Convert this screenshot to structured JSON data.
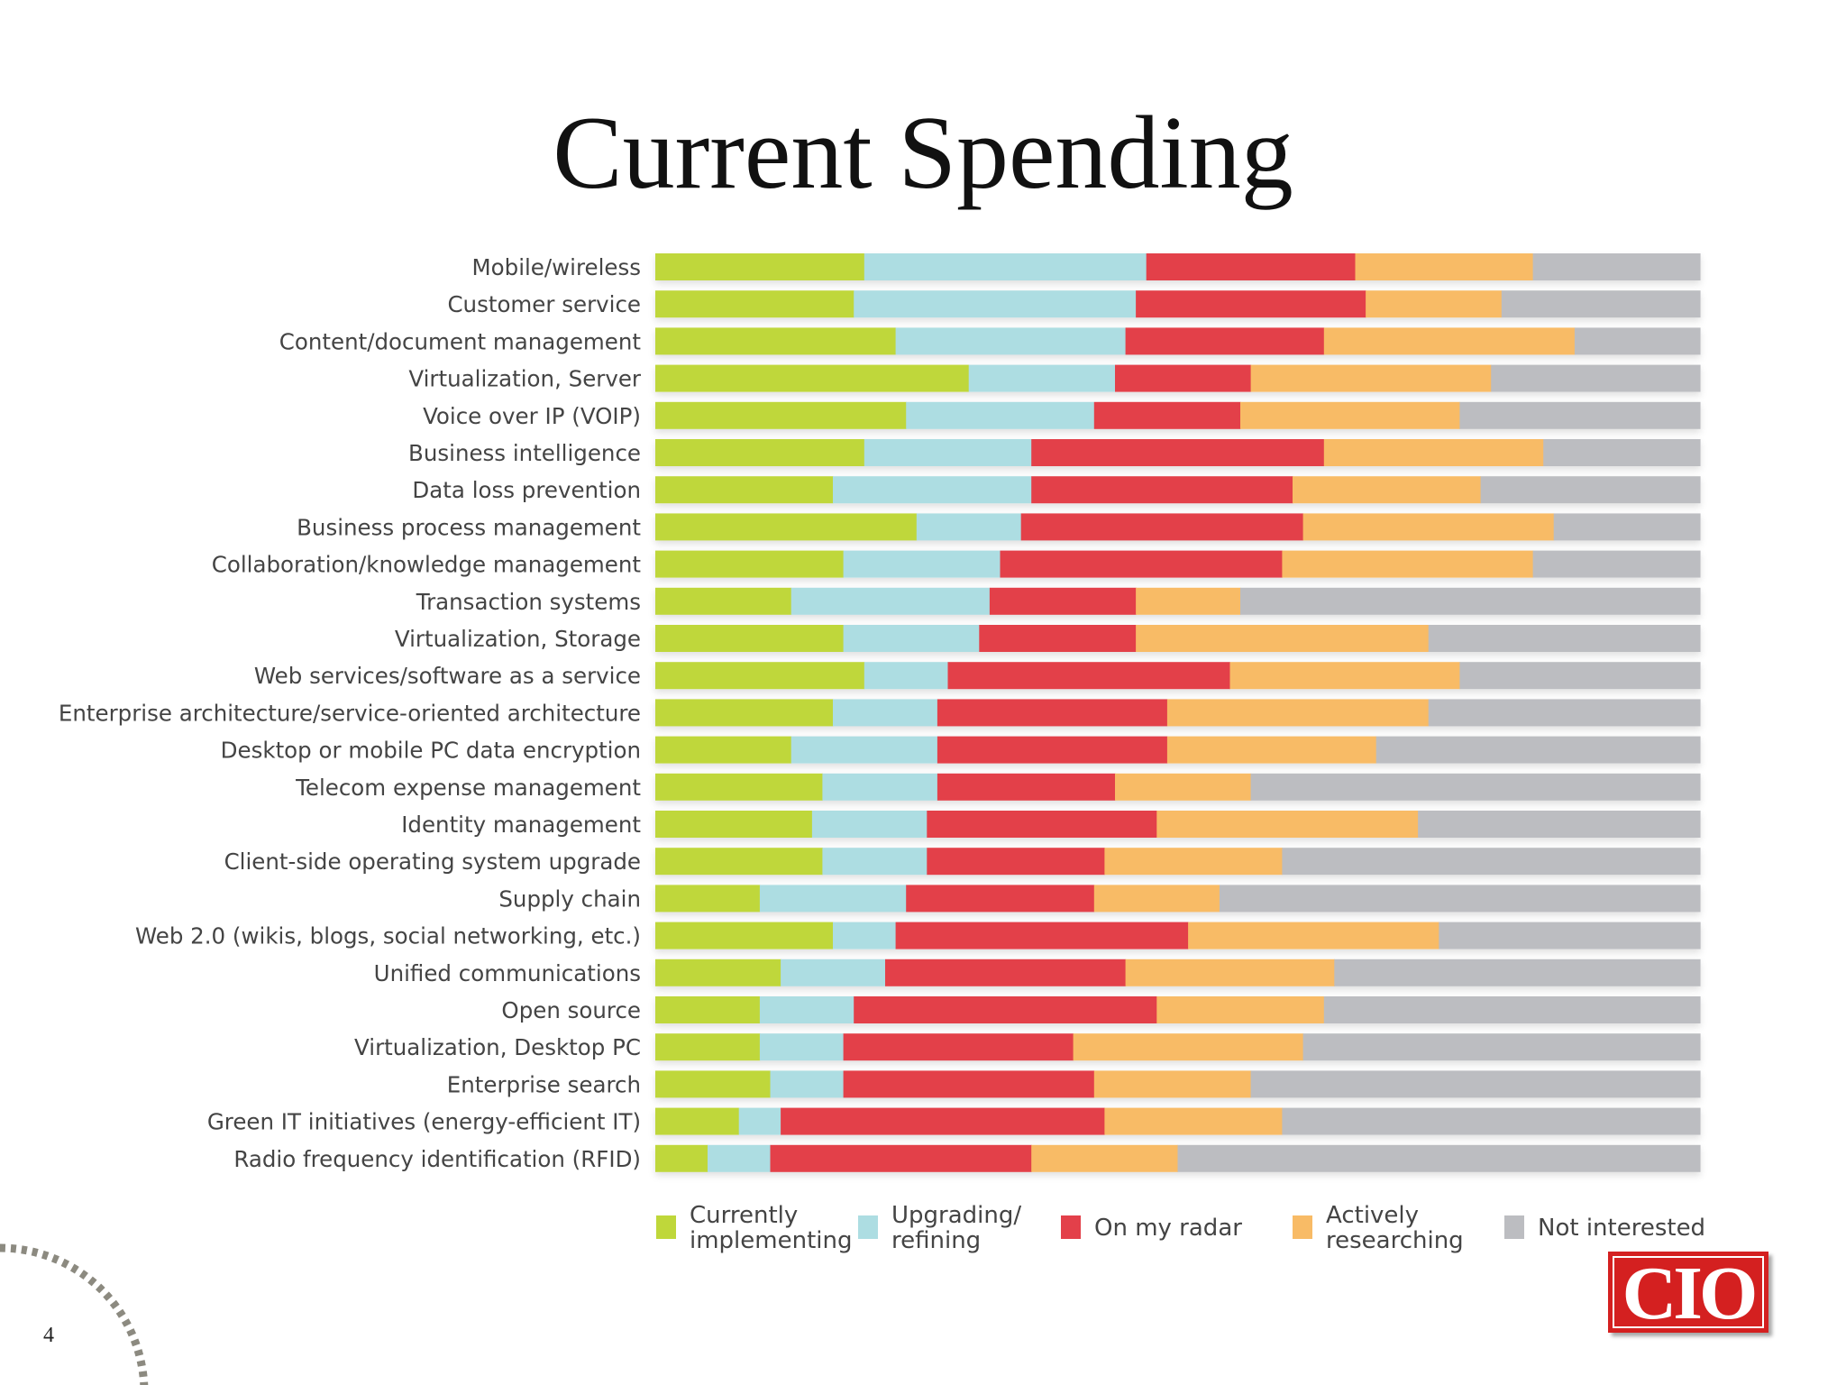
{
  "slide": {
    "title": "Current Spending",
    "page_number": "4",
    "logo_text": "CIO"
  },
  "colors": {
    "currently_implementing": "#bfd73a",
    "upgrading_refining": "#addde2",
    "on_my_radar": "#e3404a",
    "actively_researching": "#f8bb66",
    "not_interested": "#bcbdc1"
  },
  "chart_data": {
    "type": "bar",
    "orientation": "horizontal",
    "stacked": "100%",
    "xlim": [
      0,
      100
    ],
    "axis_tick_labels_shown": false,
    "grid": false,
    "legend_position": "bottom",
    "categories": [
      "Mobile/wireless",
      "Customer service",
      "Content/document management",
      "Virtualization, Server",
      "Voice over IP (VOIP)",
      "Business intelligence",
      "Data loss prevention",
      "Business process management",
      "Collaboration/knowledge management",
      "Transaction systems",
      "Virtualization, Storage",
      "Web services/software as a service",
      "Enterprise architecture/service-oriented architecture",
      "Desktop or mobile PC data encryption",
      "Telecom expense management",
      "Identity management",
      "Client-side operating system upgrade",
      "Supply chain",
      "Web 2.0 (wikis, blogs, social networking, etc.)",
      "Unified communications",
      "Open source",
      "Virtualization, Desktop PC",
      "Enterprise search",
      "Green IT initiatives (energy-efficient IT)",
      "Radio frequency identification (RFID)"
    ],
    "series": [
      {
        "name": "Currently implementing",
        "legend_lines": [
          "Currently",
          "implementing"
        ],
        "color_key": "currently_implementing",
        "values": [
          20,
          19,
          23,
          30,
          24,
          20,
          17,
          25,
          18,
          13,
          18,
          20,
          17,
          13,
          16,
          15,
          16,
          10,
          17,
          12,
          10,
          10,
          11,
          8,
          5
        ]
      },
      {
        "name": "Upgrading/ refining",
        "legend_lines": [
          "Upgrading/",
          "refining"
        ],
        "color_key": "upgrading_refining",
        "values": [
          27,
          27,
          22,
          14,
          18,
          16,
          19,
          10,
          15,
          19,
          13,
          8,
          10,
          14,
          11,
          11,
          10,
          14,
          6,
          10,
          9,
          8,
          7,
          4,
          6
        ]
      },
      {
        "name": "On my radar",
        "legend_lines": [
          "On my radar"
        ],
        "color_key": "on_my_radar",
        "values": [
          20,
          22,
          19,
          13,
          14,
          28,
          25,
          27,
          27,
          14,
          15,
          27,
          22,
          22,
          17,
          22,
          17,
          18,
          28,
          23,
          29,
          22,
          24,
          31,
          25
        ]
      },
      {
        "name": "Actively researching",
        "legend_lines": [
          "Actively",
          "researching"
        ],
        "color_key": "actively_researching",
        "values": [
          17,
          13,
          24,
          23,
          21,
          21,
          18,
          24,
          24,
          10,
          28,
          22,
          25,
          20,
          13,
          25,
          17,
          12,
          24,
          20,
          16,
          22,
          15,
          17,
          14
        ]
      },
      {
        "name": "Not interested",
        "legend_lines": [
          "Not interested"
        ],
        "color_key": "not_interested",
        "values": [
          16,
          19,
          12,
          20,
          23,
          15,
          21,
          14,
          16,
          44,
          26,
          23,
          26,
          31,
          43,
          27,
          40,
          46,
          25,
          35,
          36,
          38,
          43,
          40,
          50
        ]
      }
    ]
  }
}
